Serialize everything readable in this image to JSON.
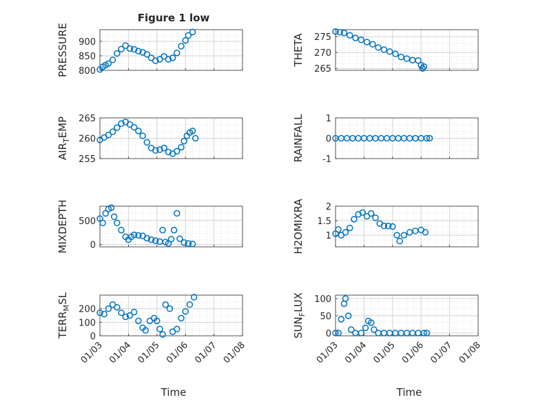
{
  "figure": {
    "title": "Figure 1 low",
    "marker_color": "#0072BD",
    "grid": true,
    "x_tick_labels": [
      "01/03",
      "01/04",
      "01/05",
      "01/06",
      "01/07",
      "01/08"
    ],
    "x_label": "Time"
  },
  "chart_data": [
    {
      "type": "scatter",
      "ylabel": "PRESSURE",
      "title": "Figure 1 low",
      "xlabel": "",
      "xlim": [
        0,
        5
      ],
      "ylim": [
        800,
        940
      ],
      "y_ticks": [
        800,
        850,
        900
      ],
      "y_tick_labels": [
        "800",
        "850",
        "900"
      ],
      "points": [
        [
          0.0,
          803
        ],
        [
          0.1,
          812
        ],
        [
          0.2,
          818
        ],
        [
          0.3,
          823
        ],
        [
          0.45,
          836
        ],
        [
          0.6,
          858
        ],
        [
          0.75,
          873
        ],
        [
          0.9,
          885
        ],
        [
          1.05,
          875
        ],
        [
          1.2,
          872
        ],
        [
          1.35,
          866
        ],
        [
          1.5,
          862
        ],
        [
          1.65,
          855
        ],
        [
          1.8,
          843
        ],
        [
          1.95,
          833
        ],
        [
          2.1,
          838
        ],
        [
          2.25,
          848
        ],
        [
          2.4,
          838
        ],
        [
          2.55,
          843
        ],
        [
          2.7,
          860
        ],
        [
          2.85,
          883
        ],
        [
          3.0,
          903
        ],
        [
          3.1,
          920
        ],
        [
          3.25,
          932
        ]
      ]
    },
    {
      "type": "scatter",
      "ylabel": "THETA",
      "xlabel": "",
      "xlim": [
        0,
        5
      ],
      "ylim": [
        264.4,
        277.2
      ],
      "y_ticks": [
        265,
        270,
        275
      ],
      "y_tick_labels": [
        "265",
        "270",
        "275"
      ],
      "points": [
        [
          0.0,
          276.6
        ],
        [
          0.15,
          276.4
        ],
        [
          0.3,
          276.2
        ],
        [
          0.5,
          275.4
        ],
        [
          0.7,
          274.6
        ],
        [
          0.9,
          274.0
        ],
        [
          1.1,
          273.3
        ],
        [
          1.3,
          272.6
        ],
        [
          1.5,
          271.6
        ],
        [
          1.7,
          270.9
        ],
        [
          1.9,
          270.3
        ],
        [
          2.1,
          269.6
        ],
        [
          2.3,
          268.6
        ],
        [
          2.5,
          268.1
        ],
        [
          2.7,
          267.6
        ],
        [
          2.9,
          267.5
        ],
        [
          3.0,
          266.0
        ],
        [
          3.05,
          265.0
        ],
        [
          3.1,
          265.6
        ]
      ]
    },
    {
      "type": "scatter",
      "ylabel": "AIR_TEMP",
      "xlabel": "",
      "xlim": [
        0,
        5
      ],
      "ylim": [
        255,
        265
      ],
      "y_ticks": [
        255,
        260,
        265
      ],
      "y_tick_labels": [
        "255",
        "260",
        "265"
      ],
      "points": [
        [
          0.0,
          259.6
        ],
        [
          0.15,
          260.2
        ],
        [
          0.3,
          260.8
        ],
        [
          0.45,
          261.6
        ],
        [
          0.6,
          262.6
        ],
        [
          0.75,
          263.6
        ],
        [
          0.9,
          264.0
        ],
        [
          1.05,
          263.4
        ],
        [
          1.2,
          262.7
        ],
        [
          1.35,
          261.8
        ],
        [
          1.5,
          260.6
        ],
        [
          1.65,
          259.0
        ],
        [
          1.8,
          257.6
        ],
        [
          1.95,
          257.0
        ],
        [
          2.1,
          257.2
        ],
        [
          2.25,
          257.6
        ],
        [
          2.4,
          256.6
        ],
        [
          2.55,
          256.2
        ],
        [
          2.7,
          256.8
        ],
        [
          2.85,
          257.8
        ],
        [
          2.95,
          259.3
        ],
        [
          3.05,
          260.6
        ],
        [
          3.15,
          261.4
        ],
        [
          3.25,
          261.8
        ],
        [
          3.35,
          260.0
        ]
      ]
    },
    {
      "type": "scatter",
      "ylabel": "RAINFALL",
      "xlabel": "",
      "xlim": [
        0,
        5
      ],
      "ylim": [
        -1,
        1
      ],
      "y_ticks": [
        -1,
        0,
        1
      ],
      "y_tick_labels": [
        "-1",
        "0",
        "1"
      ],
      "points": [
        [
          0.0,
          0
        ],
        [
          0.2,
          0
        ],
        [
          0.4,
          0
        ],
        [
          0.6,
          0
        ],
        [
          0.8,
          0
        ],
        [
          1.0,
          0
        ],
        [
          1.2,
          0
        ],
        [
          1.4,
          0
        ],
        [
          1.6,
          0
        ],
        [
          1.8,
          0
        ],
        [
          2.0,
          0
        ],
        [
          2.2,
          0
        ],
        [
          2.4,
          0
        ],
        [
          2.6,
          0
        ],
        [
          2.8,
          0
        ],
        [
          3.0,
          0
        ],
        [
          3.2,
          0
        ],
        [
          3.3,
          0
        ]
      ]
    },
    {
      "type": "scatter",
      "ylabel": "MIXDEPTH",
      "xlabel": "",
      "xlim": [
        0,
        5
      ],
      "ylim": [
        -50,
        800
      ],
      "y_ticks": [
        0,
        500
      ],
      "y_tick_labels": [
        "0",
        "500"
      ],
      "points": [
        [
          0.0,
          540
        ],
        [
          0.1,
          450
        ],
        [
          0.2,
          650
        ],
        [
          0.3,
          740
        ],
        [
          0.4,
          770
        ],
        [
          0.5,
          580
        ],
        [
          0.6,
          450
        ],
        [
          0.75,
          300
        ],
        [
          0.9,
          160
        ],
        [
          1.0,
          100
        ],
        [
          1.1,
          160
        ],
        [
          1.2,
          200
        ],
        [
          1.35,
          190
        ],
        [
          1.5,
          180
        ],
        [
          1.65,
          130
        ],
        [
          1.8,
          100
        ],
        [
          1.95,
          80
        ],
        [
          2.1,
          60
        ],
        [
          2.2,
          300
        ],
        [
          2.3,
          50
        ],
        [
          2.4,
          20
        ],
        [
          2.5,
          110
        ],
        [
          2.6,
          300
        ],
        [
          2.7,
          650
        ],
        [
          2.8,
          120
        ],
        [
          2.95,
          40
        ],
        [
          3.1,
          20
        ],
        [
          3.25,
          10
        ]
      ]
    },
    {
      "type": "scatter",
      "ylabel": "H2OMIXRA",
      "xlabel": "",
      "xlim": [
        0,
        5
      ],
      "ylim": [
        0.6,
        2.0
      ],
      "y_ticks": [
        1,
        1.5,
        2
      ],
      "y_tick_labels": [
        "1",
        "1.5",
        "2"
      ],
      "points": [
        [
          0.0,
          1.05
        ],
        [
          0.1,
          1.2
        ],
        [
          0.2,
          1.0
        ],
        [
          0.35,
          1.1
        ],
        [
          0.5,
          1.25
        ],
        [
          0.65,
          1.55
        ],
        [
          0.8,
          1.72
        ],
        [
          0.95,
          1.78
        ],
        [
          1.1,
          1.65
        ],
        [
          1.25,
          1.75
        ],
        [
          1.4,
          1.6
        ],
        [
          1.55,
          1.4
        ],
        [
          1.7,
          1.32
        ],
        [
          1.85,
          1.32
        ],
        [
          2.0,
          1.3
        ],
        [
          2.15,
          1.0
        ],
        [
          2.25,
          0.8
        ],
        [
          2.4,
          1.0
        ],
        [
          2.6,
          1.1
        ],
        [
          2.8,
          1.15
        ],
        [
          3.0,
          1.18
        ],
        [
          3.15,
          1.1
        ]
      ]
    },
    {
      "type": "scatter",
      "ylabel": "TERR_MSL",
      "xlabel": "Time",
      "xlim": [
        0,
        5
      ],
      "ylim": [
        0,
        300
      ],
      "y_ticks": [
        0,
        100,
        200
      ],
      "y_tick_labels": [
        "0",
        "100",
        "200"
      ],
      "points": [
        [
          0.0,
          170
        ],
        [
          0.15,
          160
        ],
        [
          0.3,
          200
        ],
        [
          0.45,
          230
        ],
        [
          0.6,
          210
        ],
        [
          0.75,
          170
        ],
        [
          0.9,
          140
        ],
        [
          1.05,
          150
        ],
        [
          1.2,
          175
        ],
        [
          1.35,
          110
        ],
        [
          1.5,
          60
        ],
        [
          1.6,
          40
        ],
        [
          1.75,
          110
        ],
        [
          1.9,
          130
        ],
        [
          2.0,
          110
        ],
        [
          2.1,
          50
        ],
        [
          2.2,
          10
        ],
        [
          2.3,
          230
        ],
        [
          2.45,
          200
        ],
        [
          2.55,
          30
        ],
        [
          2.7,
          50
        ],
        [
          2.85,
          130
        ],
        [
          3.0,
          180
        ],
        [
          3.15,
          230
        ],
        [
          3.3,
          285
        ]
      ]
    },
    {
      "type": "scatter",
      "ylabel": "SUN_FLUX",
      "xlabel": "Time",
      "xlim": [
        0,
        5
      ],
      "ylim": [
        -8,
        110
      ],
      "y_ticks": [
        0,
        50,
        100
      ],
      "y_tick_labels": [
        "0",
        "50",
        "100"
      ],
      "points": [
        [
          0.0,
          0
        ],
        [
          0.1,
          0
        ],
        [
          0.2,
          40
        ],
        [
          0.3,
          85
        ],
        [
          0.35,
          100
        ],
        [
          0.45,
          50
        ],
        [
          0.55,
          10
        ],
        [
          0.7,
          0
        ],
        [
          0.9,
          0
        ],
        [
          1.05,
          15
        ],
        [
          1.15,
          35
        ],
        [
          1.25,
          30
        ],
        [
          1.35,
          10
        ],
        [
          1.5,
          0
        ],
        [
          1.7,
          0
        ],
        [
          1.9,
          0
        ],
        [
          2.1,
          0
        ],
        [
          2.3,
          0
        ],
        [
          2.5,
          0
        ],
        [
          2.7,
          0
        ],
        [
          2.9,
          0
        ],
        [
          3.1,
          0
        ],
        [
          3.2,
          0
        ]
      ]
    }
  ]
}
